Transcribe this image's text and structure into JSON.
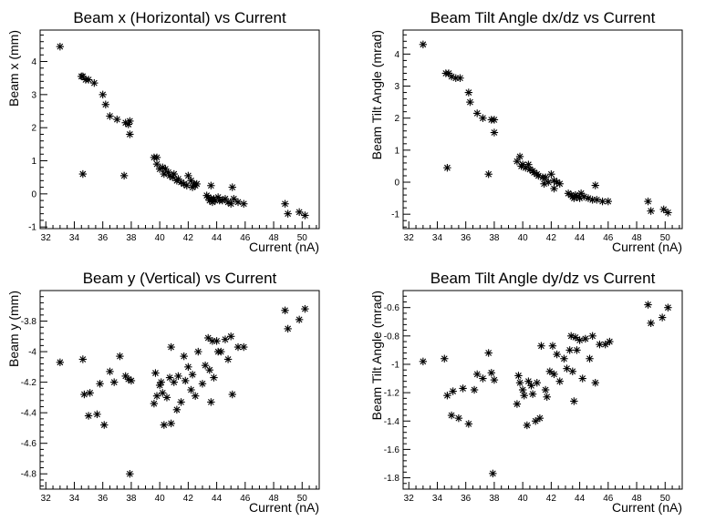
{
  "chart_data": [
    {
      "type": "scatter",
      "title": "Beam x (Horizontal) vs Current",
      "xlabel": "Current (nA)",
      "ylabel": "Beam x (mm)",
      "xlim": [
        31.6,
        51.2
      ],
      "ylim": [
        -1.05,
        4.95
      ],
      "xticks": [
        32,
        34,
        36,
        38,
        40,
        42,
        44,
        46,
        48,
        50
      ],
      "yticks": [
        -1,
        0,
        1,
        2,
        3,
        4
      ],
      "grid": false,
      "x": [
        33.0,
        34.5,
        34.6,
        34.8,
        35.0,
        35.4,
        36.0,
        36.2,
        36.5,
        37.0,
        37.6,
        37.8,
        37.9,
        37.9,
        39.6,
        39.8,
        39.8,
        40.0,
        40.2,
        40.3,
        40.4,
        40.6,
        40.7,
        40.9,
        41.0,
        41.2,
        41.3,
        41.5,
        41.7,
        41.9,
        42.0,
        42.2,
        42.3,
        42.4,
        42.5,
        42.6,
        43.3,
        43.4,
        43.5,
        43.6,
        43.6,
        43.7,
        43.8,
        43.9,
        44.1,
        44.2,
        44.4,
        44.6,
        44.8,
        45.0,
        45.1,
        45.2,
        45.5,
        45.9,
        48.8,
        49.0,
        49.8,
        50.2,
        37.5,
        34.6
      ],
      "y": [
        4.45,
        3.55,
        3.55,
        3.45,
        3.45,
        3.35,
        3.0,
        2.7,
        2.35,
        2.25,
        2.15,
        2.1,
        2.2,
        1.8,
        1.1,
        1.1,
        0.9,
        0.75,
        0.8,
        0.6,
        0.75,
        0.65,
        0.55,
        0.5,
        0.6,
        0.4,
        0.45,
        0.35,
        0.3,
        0.25,
        0.55,
        0.4,
        0.2,
        0.3,
        0.25,
        0.3,
        -0.05,
        -0.1,
        -0.2,
        0.25,
        -0.15,
        -0.25,
        -0.15,
        -0.2,
        -0.1,
        -0.2,
        -0.2,
        -0.15,
        -0.25,
        -0.3,
        0.2,
        -0.15,
        -0.25,
        -0.3,
        -0.3,
        -0.6,
        -0.55,
        -0.65,
        0.55,
        0.6
      ]
    },
    {
      "type": "scatter",
      "title": "Beam Tilt Angle dx/dz vs Current",
      "xlabel": "Current (nA)",
      "ylabel": "Beam Tilt Angle (mrad)",
      "xlim": [
        31.6,
        51.2
      ],
      "ylim": [
        -1.45,
        4.75
      ],
      "xticks": [
        32,
        34,
        36,
        38,
        40,
        42,
        44,
        46,
        48,
        50
      ],
      "yticks": [
        -1,
        0,
        1,
        2,
        3,
        4
      ],
      "grid": false,
      "x": [
        33.0,
        34.6,
        34.8,
        35.0,
        35.3,
        35.6,
        36.2,
        36.3,
        36.8,
        37.2,
        37.8,
        38.0,
        38.0,
        37.6,
        34.7,
        39.6,
        39.8,
        39.9,
        40.0,
        40.2,
        40.4,
        40.5,
        40.7,
        40.8,
        41.0,
        41.1,
        41.4,
        41.6,
        41.8,
        42.0,
        42.2,
        42.4,
        42.6,
        43.2,
        43.4,
        43.5,
        43.6,
        43.7,
        43.8,
        44.0,
        44.1,
        44.3,
        44.6,
        44.9,
        45.1,
        45.2,
        45.6,
        46.0,
        48.8,
        49.0,
        49.9,
        50.2,
        41.5,
        42.2
      ],
      "y": [
        4.3,
        3.4,
        3.4,
        3.3,
        3.25,
        3.25,
        2.8,
        2.5,
        2.15,
        2.0,
        1.95,
        1.95,
        1.55,
        0.25,
        0.45,
        0.65,
        0.8,
        0.5,
        0.55,
        0.45,
        0.55,
        0.4,
        0.35,
        0.3,
        0.25,
        0.2,
        0.15,
        0.15,
        0.0,
        0.25,
        0.05,
        0.0,
        -0.05,
        -0.35,
        -0.4,
        -0.45,
        -0.5,
        -0.4,
        -0.45,
        -0.5,
        -0.35,
        -0.45,
        -0.5,
        -0.55,
        -0.1,
        -0.55,
        -0.6,
        -0.6,
        -0.6,
        -0.9,
        -0.85,
        -0.95,
        -0.05,
        -0.2
      ]
    },
    {
      "type": "scatter",
      "title": "Beam y (Vertical) vs Current",
      "xlabel": "Current (nA)",
      "ylabel": "Beam y (mm)",
      "xlim": [
        31.6,
        51.2
      ],
      "ylim": [
        -4.9,
        -3.6
      ],
      "xticks": [
        32,
        34,
        36,
        38,
        40,
        42,
        44,
        46,
        48,
        50
      ],
      "yticks": [
        -4.8,
        -4.6,
        -4.4,
        -4.2,
        -4.0,
        -3.8
      ],
      "ytick_labels": [
        "-4.8",
        "-4.6",
        "-4.4",
        "-4.2",
        "-4",
        "-3.8"
      ],
      "grid": false,
      "x": [
        33.0,
        34.6,
        34.7,
        35.0,
        35.1,
        35.6,
        35.8,
        36.1,
        36.5,
        36.8,
        37.2,
        37.6,
        37.8,
        37.9,
        38.0,
        39.6,
        39.7,
        39.8,
        40.0,
        40.1,
        40.2,
        40.3,
        40.5,
        40.7,
        40.8,
        41.0,
        41.2,
        41.3,
        41.5,
        41.7,
        41.8,
        42.0,
        42.2,
        42.3,
        42.5,
        42.7,
        43.0,
        43.2,
        43.4,
        43.5,
        43.6,
        43.7,
        43.8,
        44.0,
        44.1,
        44.3,
        44.6,
        44.8,
        45.0,
        45.1,
        45.5,
        45.9,
        48.8,
        49.0,
        49.8,
        50.2,
        40.8
      ],
      "y": [
        -4.07,
        -4.05,
        -4.28,
        -4.42,
        -4.27,
        -4.41,
        -4.21,
        -4.48,
        -4.13,
        -4.2,
        -4.03,
        -4.16,
        -4.18,
        -4.8,
        -4.19,
        -4.34,
        -4.14,
        -4.29,
        -4.22,
        -4.2,
        -4.27,
        -4.48,
        -4.3,
        -4.17,
        -3.97,
        -4.2,
        -4.38,
        -4.16,
        -4.33,
        -4.03,
        -4.19,
        -4.1,
        -4.25,
        -4.15,
        -4.29,
        -4.0,
        -4.21,
        -4.09,
        -3.91,
        -4.12,
        -4.33,
        -3.93,
        -4.17,
        -3.93,
        -4.0,
        -4.0,
        -3.92,
        -4.05,
        -3.9,
        -4.28,
        -3.97,
        -3.97,
        -3.73,
        -3.85,
        -3.79,
        -3.72,
        -4.47
      ]
    },
    {
      "type": "scatter",
      "title": "Beam Tilt Angle dy/dz vs Current",
      "xlabel": "Current (nA)",
      "ylabel": "Beam Tilt Angle (mrad)",
      "xlim": [
        31.6,
        51.2
      ],
      "ylim": [
        -1.88,
        -0.48
      ],
      "xticks": [
        32,
        34,
        36,
        38,
        40,
        42,
        44,
        46,
        48,
        50
      ],
      "yticks": [
        -1.8,
        -1.6,
        -1.4,
        -1.2,
        -1.0,
        -0.8,
        -0.6
      ],
      "ytick_labels": [
        "-1.8",
        "-1.6",
        "-1.4",
        "-1.2",
        "-1",
        "-0.8",
        "-0.6"
      ],
      "grid": false,
      "x": [
        33.0,
        34.5,
        34.7,
        35.0,
        35.1,
        35.5,
        35.8,
        36.2,
        36.6,
        36.8,
        37.2,
        37.6,
        37.8,
        37.9,
        38.0,
        39.6,
        39.7,
        39.8,
        40.0,
        40.1,
        40.3,
        40.4,
        40.6,
        40.7,
        40.9,
        41.0,
        41.2,
        41.3,
        41.6,
        41.7,
        41.9,
        42.1,
        42.2,
        42.4,
        42.6,
        42.9,
        43.1,
        43.3,
        43.4,
        43.5,
        43.6,
        43.7,
        43.8,
        44.0,
        44.2,
        44.4,
        44.7,
        44.9,
        45.1,
        45.4,
        45.8,
        46.1,
        48.8,
        49.0,
        49.8,
        50.2
      ],
      "y": [
        -0.98,
        -0.96,
        -1.22,
        -1.36,
        -1.19,
        -1.38,
        -1.17,
        -1.42,
        -1.18,
        -1.07,
        -1.1,
        -0.92,
        -1.06,
        -1.77,
        -1.11,
        -1.28,
        -1.08,
        -1.13,
        -1.18,
        -1.22,
        -1.43,
        -1.12,
        -1.15,
        -1.21,
        -1.4,
        -1.13,
        -1.38,
        -0.87,
        -1.18,
        -1.23,
        -1.05,
        -0.87,
        -1.07,
        -0.93,
        -1.12,
        -0.96,
        -1.03,
        -0.9,
        -0.8,
        -1.05,
        -1.26,
        -0.81,
        -0.9,
        -0.83,
        -1.1,
        -0.82,
        -0.96,
        -0.8,
        -1.13,
        -0.86,
        -0.86,
        -0.84,
        -0.58,
        -0.71,
        -0.67,
        -0.6
      ]
    }
  ]
}
